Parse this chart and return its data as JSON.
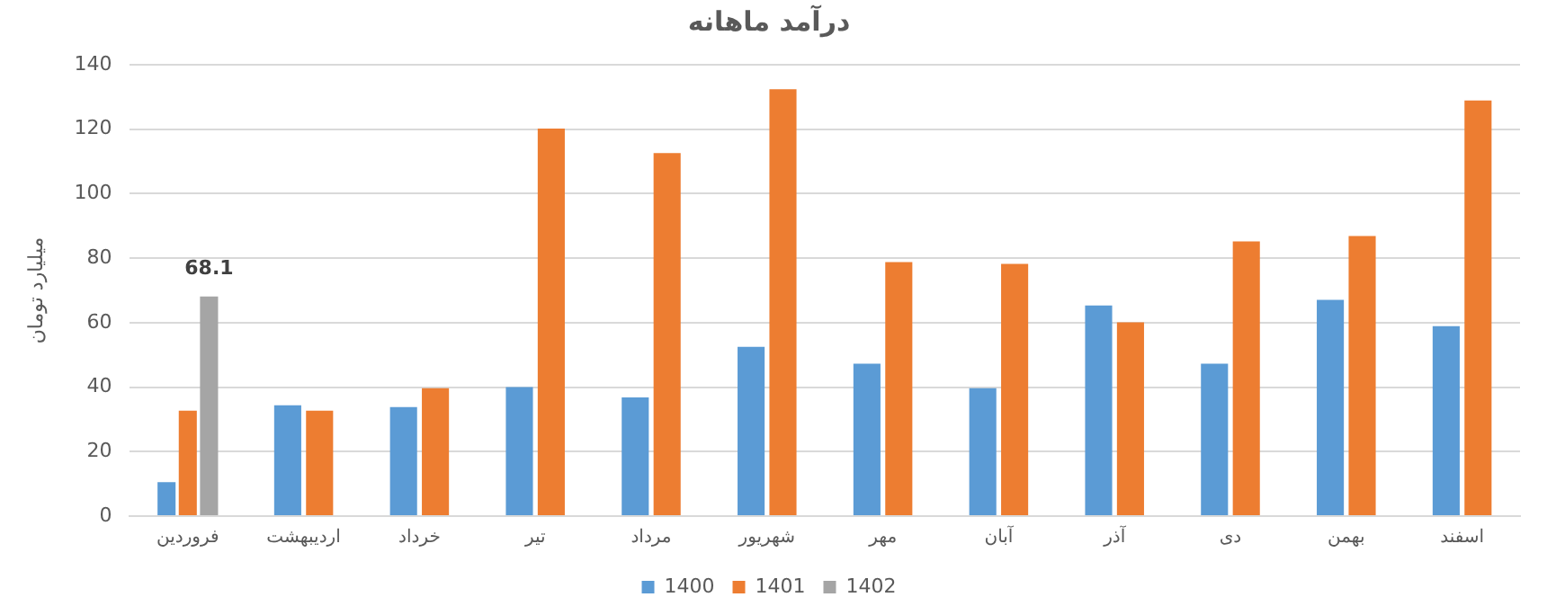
{
  "chart_data": {
    "type": "bar",
    "title": "درآمد ماهانه",
    "ylabel": "میلیارد تومان",
    "categories": [
      "فروردین",
      "اردیبهشت",
      "خرداد",
      "تیر",
      "مرداد",
      "شهریور",
      "مهر",
      "آبان",
      "آذر",
      "دی",
      "بهمن",
      "اسفند"
    ],
    "series": [
      {
        "name": "1400",
        "color": "#5b9bd5",
        "values": [
          10.5,
          34.4,
          33.8,
          40,
          36.8,
          52.5,
          47.3,
          39.7,
          65.3,
          47.3,
          67.1,
          58.9
        ]
      },
      {
        "name": "1401",
        "color": "#ed7d31",
        "values": [
          32.7,
          32.7,
          39.7,
          120.2,
          112.6,
          132.4,
          78.8,
          78.2,
          60.1,
          85.2,
          86.9,
          128.9
        ]
      },
      {
        "name": "1402",
        "color": "#a5a5a5",
        "values": [
          68.1,
          null,
          null,
          null,
          null,
          null,
          null,
          null,
          null,
          null,
          null,
          null
        ],
        "value_labels": [
          "68.1",
          null,
          null,
          null,
          null,
          null,
          null,
          null,
          null,
          null,
          null,
          null
        ]
      }
    ],
    "ylim": [
      0,
      140
    ],
    "yticks": [
      0,
      20,
      40,
      60,
      80,
      100,
      120,
      140
    ],
    "grid": "y",
    "legend": "bottom"
  }
}
